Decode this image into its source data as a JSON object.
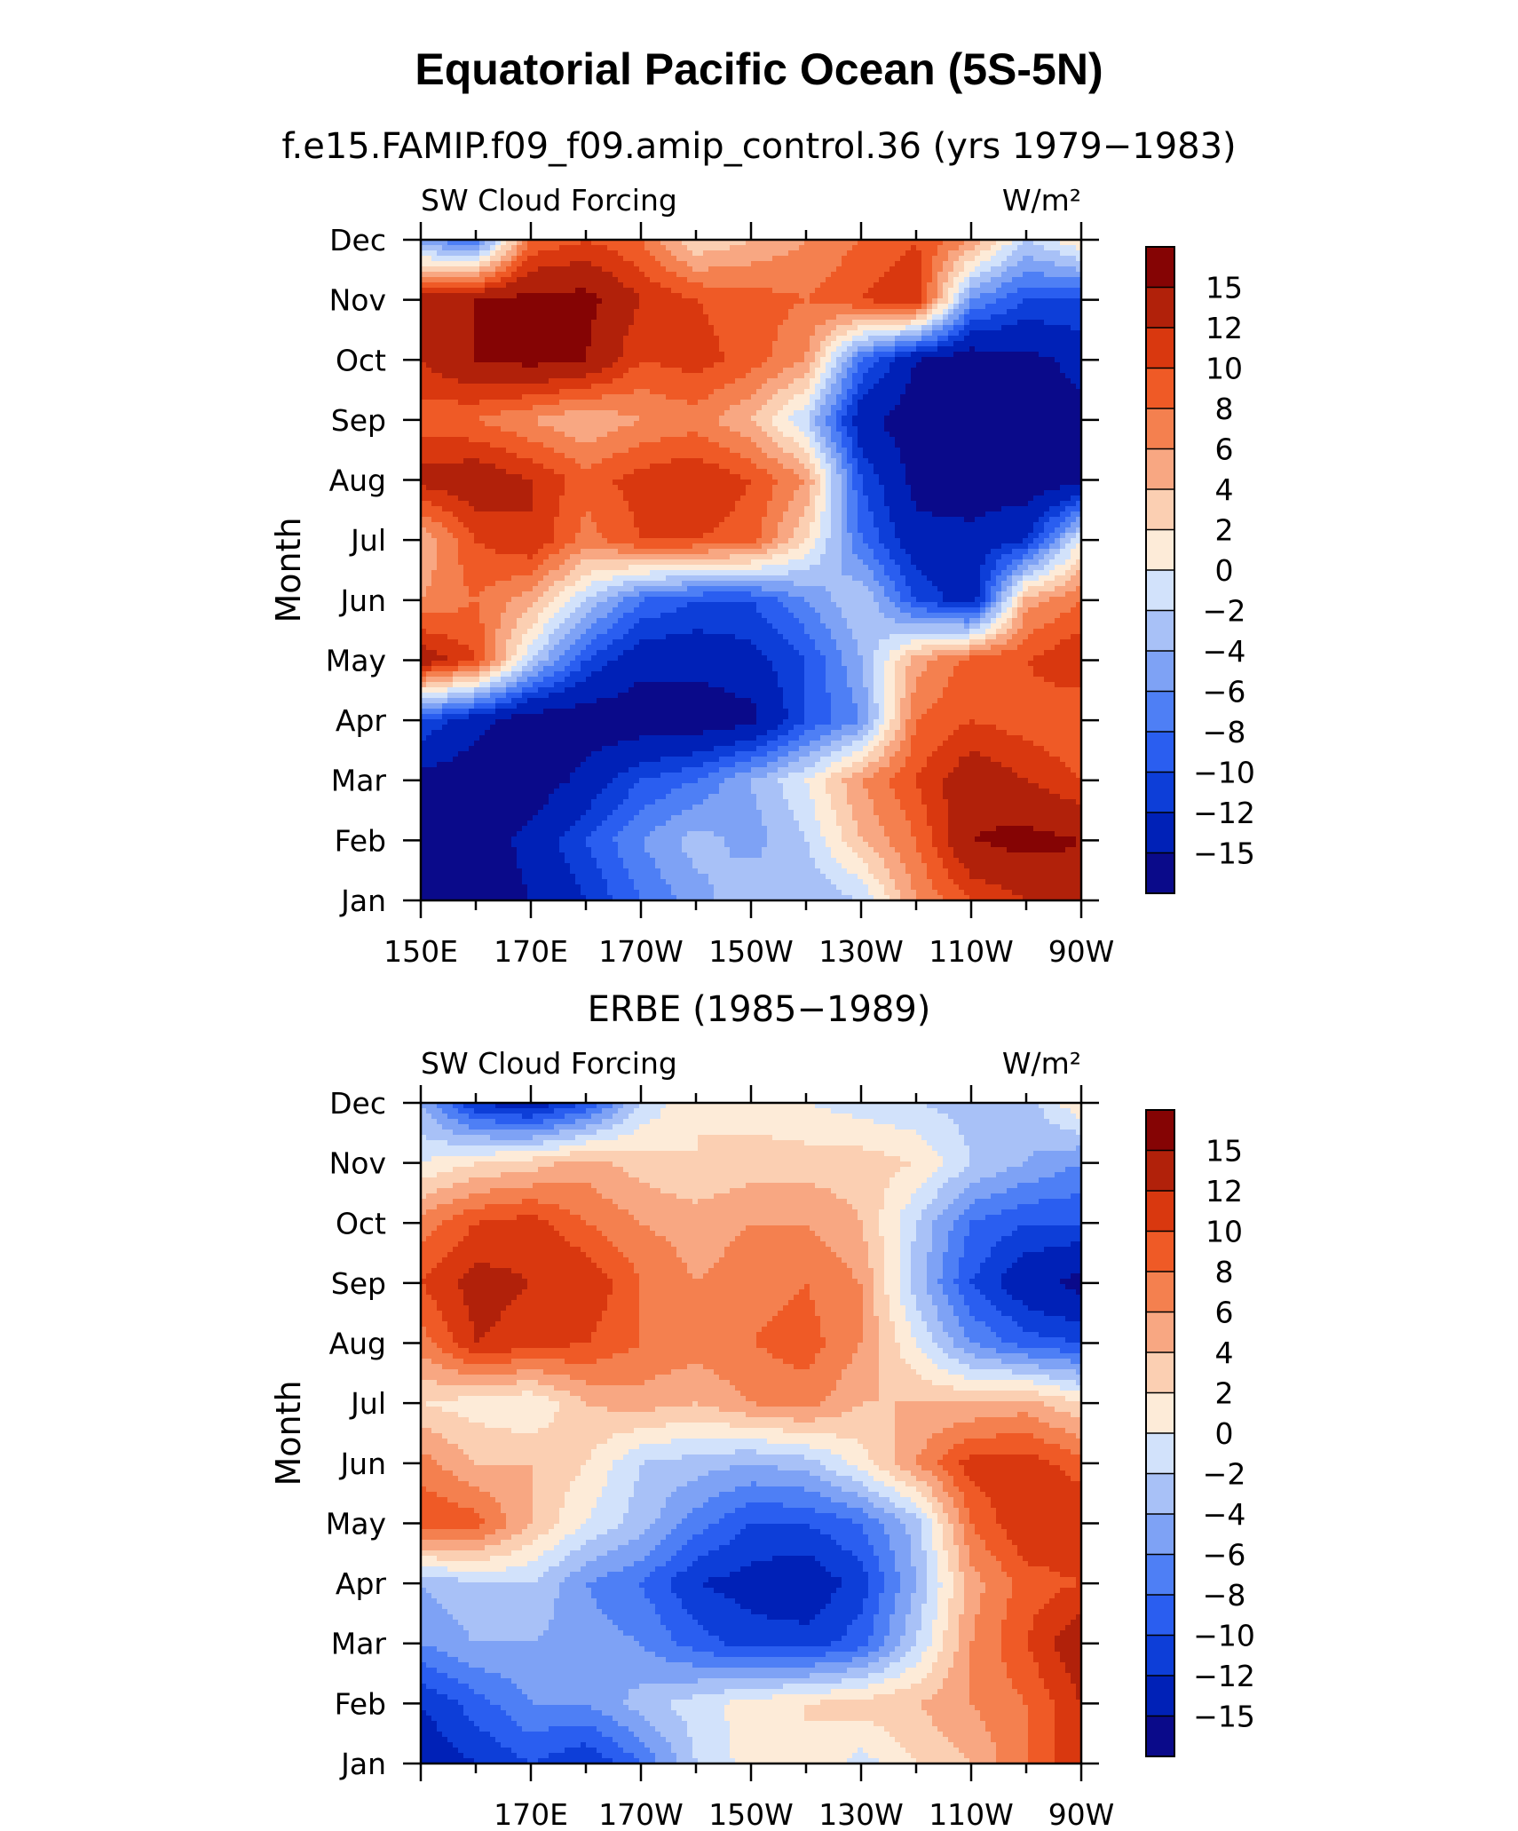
{
  "main_title": "Equatorial Pacific Ocean (5S-5N)",
  "colors": [
    "#0a0a8a",
    "#0021b7",
    "#0d3ed8",
    "#2a5ef0",
    "#4e7ff5",
    "#7ea2f5",
    "#a8c1f7",
    "#d2e2fb",
    "#fdebd8",
    "#fbcfb2",
    "#f8a782",
    "#f4804f",
    "#ef5a26",
    "#d9380f",
    "#b1210a",
    "#850404"
  ],
  "chart_data": [
    {
      "type": "heatmap",
      "subtitle": "f.e15.FAMIP.f09_f09.amip_control.36 (yrs 1979−1983)",
      "left_label": "SW Cloud Forcing",
      "right_label": "W/m²",
      "ylabel": "Month",
      "months": [
        "Jan",
        "Feb",
        "Mar",
        "Apr",
        "May",
        "Jun",
        "Jul",
        "Aug",
        "Sep",
        "Oct",
        "Nov",
        "Dec"
      ],
      "x_range": [
        150,
        270
      ],
      "x_ticks": [
        150,
        170,
        190,
        210,
        230,
        250,
        270
      ],
      "x_tick_labels": [
        "150E",
        "170E",
        "170W",
        "150W",
        "130W",
        "110W",
        "90W"
      ],
      "levels": [
        -15,
        -12,
        -10,
        -8,
        -6,
        -4,
        -2,
        0,
        2,
        4,
        6,
        8,
        10,
        12,
        15
      ],
      "level_labels": [
        "15",
        "12",
        "10",
        "8",
        "6",
        "4",
        "2",
        "0",
        "−2",
        "−4",
        "−6",
        "−8",
        "−10",
        "−12",
        "−15"
      ],
      "lon": [
        150,
        160,
        170,
        180,
        190,
        200,
        210,
        220,
        230,
        240,
        250,
        260,
        270
      ],
      "values": [
        [
          -17,
          -17,
          -15,
          -12,
          -8,
          -5,
          -2,
          -4,
          -2,
          6,
          10,
          12,
          14
        ],
        [
          -17,
          -17,
          -14,
          -10,
          -6,
          -3,
          -5,
          -2,
          4,
          8,
          15,
          16,
          15
        ],
        [
          -16,
          -17,
          -17,
          -14,
          -10,
          -8,
          -4,
          0,
          6,
          10,
          14,
          12,
          10
        ],
        [
          -10,
          -14,
          -17,
          -17,
          -17,
          -17,
          -16,
          -10,
          -6,
          8,
          10,
          9,
          8
        ],
        [
          14,
          10,
          -2,
          -10,
          -14,
          -14,
          -13,
          -10,
          -4,
          5,
          9,
          10,
          12
        ],
        [
          6,
          8,
          5,
          -2,
          -8,
          -10,
          -10,
          -6,
          -2,
          -10,
          -14,
          5,
          8
        ],
        [
          4,
          10,
          12,
          7,
          10,
          10,
          9,
          2,
          -8,
          -14,
          -14,
          -12,
          0
        ],
        [
          13,
          14,
          12,
          9,
          11,
          12,
          10,
          6,
          -10,
          -16,
          -17,
          -17,
          -16
        ],
        [
          9,
          8,
          6,
          4,
          6,
          7,
          4,
          -2,
          -14,
          -17,
          -17,
          -17,
          -16
        ],
        [
          12,
          15,
          16,
          15,
          10,
          11,
          9,
          6,
          -8,
          -15,
          -17,
          -16,
          -14
        ],
        [
          14,
          15,
          16,
          16,
          12,
          10,
          9,
          8,
          10,
          12,
          -6,
          -10,
          -10
        ],
        [
          -6,
          -8,
          8,
          10,
          8,
          2,
          4,
          6,
          8,
          10,
          6,
          -2,
          2
        ]
      ]
    },
    {
      "type": "heatmap",
      "subtitle": "ERBE (1985−1989)",
      "left_label": "SW Cloud Forcing",
      "right_label": "W/m²",
      "ylabel": "Month",
      "months": [
        "Jan",
        "Feb",
        "Mar",
        "Apr",
        "May",
        "Jun",
        "Jul",
        "Aug",
        "Sep",
        "Oct",
        "Nov",
        "Dec"
      ],
      "x_range": [
        150,
        270
      ],
      "x_ticks": [
        150,
        170,
        190,
        210,
        230,
        250,
        270
      ],
      "x_tick_labels": [
        "",
        "170E",
        "170W",
        "150W",
        "130W",
        "110W",
        "90W"
      ],
      "levels": [
        -15,
        -12,
        -10,
        -8,
        -6,
        -4,
        -2,
        0,
        2,
        4,
        6,
        8,
        10,
        12,
        15
      ],
      "level_labels": [
        "15",
        "12",
        "10",
        "8",
        "6",
        "4",
        "2",
        "0",
        "−2",
        "−4",
        "−6",
        "−8",
        "−10",
        "−12",
        "−15"
      ],
      "lon": [
        150,
        160,
        170,
        180,
        190,
        200,
        210,
        220,
        230,
        240,
        250,
        260,
        270
      ],
      "values": [
        [
          -14,
          -12,
          -10,
          -12,
          -8,
          -2,
          1,
          2,
          -1,
          2,
          4,
          8,
          12
        ],
        [
          -12,
          -9,
          -6,
          -6,
          -3,
          -1,
          1,
          2,
          3,
          4,
          6,
          8,
          12
        ],
        [
          -6,
          -4,
          -4,
          -5,
          -6,
          -9,
          -11,
          -11,
          -9,
          -2,
          6,
          10,
          14
        ],
        [
          -4,
          -2,
          -2,
          -6,
          -8,
          -12,
          -13,
          -14,
          -11,
          -4,
          5,
          9,
          10
        ],
        [
          10,
          9,
          4,
          0,
          -3,
          -7,
          -10,
          -10,
          -8,
          -3,
          8,
          12,
          12
        ],
        [
          7,
          4,
          4,
          2,
          -2,
          -3,
          -4,
          -3,
          1,
          6,
          11,
          11,
          9
        ],
        [
          2,
          1,
          0,
          4,
          5,
          4,
          6,
          7,
          4,
          4,
          4,
          5,
          2
        ],
        [
          7,
          12,
          11,
          10,
          8,
          7,
          8,
          9,
          6,
          0,
          -6,
          -9,
          -10
        ],
        [
          10,
          13,
          12,
          12,
          8,
          6,
          7,
          8,
          6,
          -3,
          -10,
          -14,
          -16
        ],
        [
          7,
          10,
          11,
          8,
          6,
          5,
          6,
          6,
          4,
          -2,
          -8,
          -10,
          -10
        ],
        [
          0,
          2,
          3,
          5,
          3,
          2,
          3,
          3,
          3,
          2,
          -2,
          -4,
          -6
        ],
        [
          -4,
          -12,
          -14,
          -10,
          -2,
          2,
          1,
          0,
          -1,
          -2,
          -3,
          -3,
          2
        ]
      ]
    }
  ]
}
